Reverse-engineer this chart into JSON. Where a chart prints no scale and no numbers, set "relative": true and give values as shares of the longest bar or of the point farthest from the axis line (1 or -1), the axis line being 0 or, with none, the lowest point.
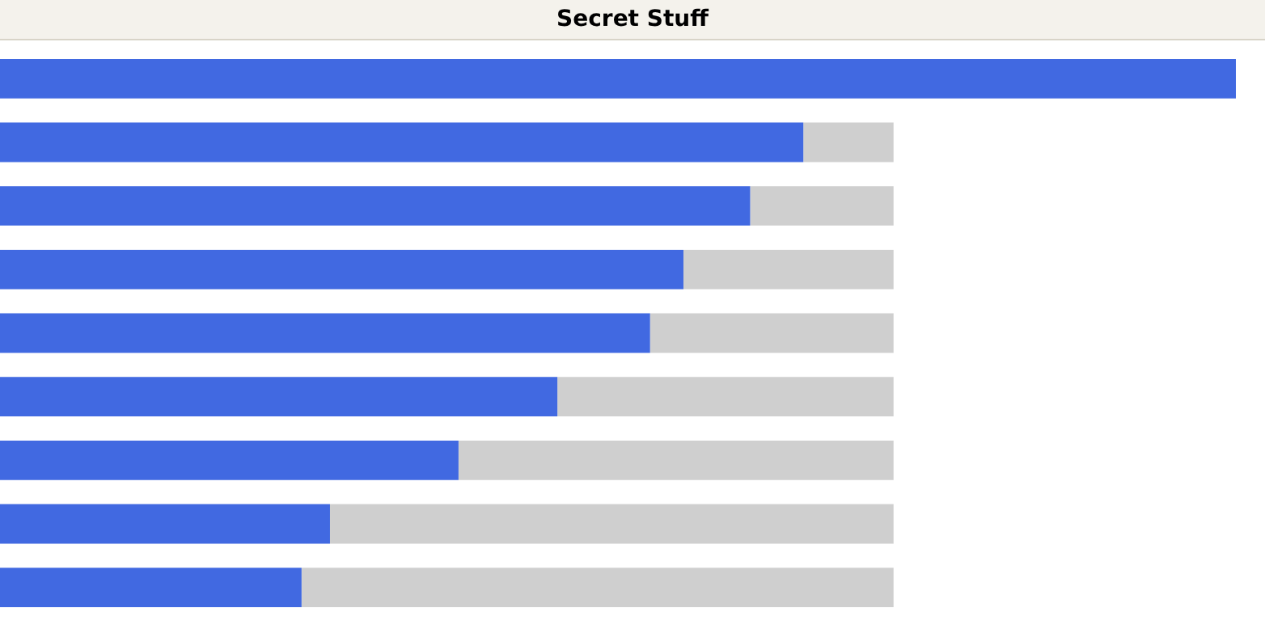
{
  "chart_data": {
    "type": "bar",
    "title": "Secret Stuff",
    "orientation": "horizontal",
    "stacked": true,
    "relative": true,
    "categories": [
      null,
      null,
      null,
      null,
      null,
      null,
      null,
      null,
      null
    ],
    "series": [
      {
        "color": "#4169e1",
        "values": [
          1,
          0.65,
          0.607,
          0.553,
          0.526,
          0.451,
          0.371,
          0.267,
          0.244
        ]
      },
      {
        "color": "#cfcfcf",
        "values": [
          0,
          0.073,
          0.116,
          0.17,
          0.197,
          0.272,
          0.352,
          0.456,
          0.479
        ]
      }
    ],
    "legend": false
  }
}
